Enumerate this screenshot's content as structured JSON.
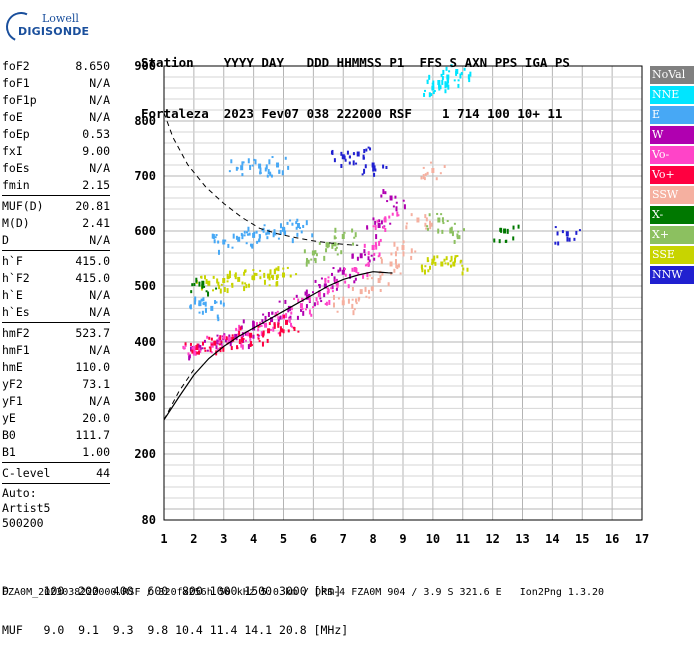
{
  "logo": {
    "brand_top": "Lowell",
    "brand_bottom": "DIGISONDE"
  },
  "header": {
    "line1": "Station    YYYY DAY   DDD HHMMSS P1  FFS S AXN PPS IGA PS",
    "line2": "Fortaleza  2023 Fev07 038 222000 RSF    1 714 100 10+ 11"
  },
  "params": [
    {
      "k": "foF2",
      "v": "8.650"
    },
    {
      "k": "foF1",
      "v": "N/A"
    },
    {
      "k": "foF1p",
      "v": "N/A"
    },
    {
      "k": "foE",
      "v": "N/A"
    },
    {
      "k": "foEp",
      "v": "0.53"
    },
    {
      "k": "fxI",
      "v": "9.00"
    },
    {
      "k": "foEs",
      "v": "N/A"
    },
    {
      "k": "fmin",
      "v": "2.15"
    },
    {
      "k": "MUF(D)",
      "v": "20.81",
      "sep": true
    },
    {
      "k": "M(D)",
      "v": "2.41"
    },
    {
      "k": "D",
      "v": "N/A"
    },
    {
      "k": "h`F",
      "v": "415.0",
      "sep": true
    },
    {
      "k": "h`F2",
      "v": "415.0"
    },
    {
      "k": "h`E",
      "v": "N/A"
    },
    {
      "k": "h`Es",
      "v": "N/A"
    },
    {
      "k": "hmF2",
      "v": "523.7",
      "sep": true
    },
    {
      "k": "hmF1",
      "v": "N/A"
    },
    {
      "k": "hmE",
      "v": "110.0"
    },
    {
      "k": "yF2",
      "v": "73.1"
    },
    {
      "k": "yF1",
      "v": "N/A"
    },
    {
      "k": "yE",
      "v": "20.0"
    },
    {
      "k": "B0",
      "v": "111.7"
    },
    {
      "k": "B1",
      "v": "1.00"
    },
    {
      "k": "C-level",
      "v": "44",
      "sep": true
    }
  ],
  "autoscale": {
    "l1": "Auto:",
    "l2": "Artist5",
    "l3": "500200"
  },
  "legend": [
    {
      "label": "NoVal",
      "color": "#808080"
    },
    {
      "label": "NNE",
      "color": "#00e5ff"
    },
    {
      "label": "E",
      "color": "#47a8f5"
    },
    {
      "label": "W",
      "color": "#b000b0"
    },
    {
      "label": "Vo-",
      "color": "#ff44c8"
    },
    {
      "label": "Vo+",
      "color": "#ff0040"
    },
    {
      "label": "SSW",
      "color": "#f5b0a0"
    },
    {
      "label": "X-",
      "color": "#007800"
    },
    {
      "label": "X+",
      "color": "#8cc060"
    },
    {
      "label": "SSE",
      "color": "#c8d400"
    },
    {
      "label": "NNW",
      "color": "#2020d0"
    }
  ],
  "bottom": {
    "d_line": "D     100  200  400  600  800 1000 1500 3000 [km]",
    "muf_line": "MUF   9.0  9.1  9.3  9.8 10.4 11.4 14.1 20.8 [MHz]"
  },
  "footer": "FZA0M_2023038222000.RSF / 320fx256h 50 kHz 5.0 km / DPS-4 FZA0M 904 / 3.9 S 321.6 E   Ion2Png 1.3.20",
  "chart_data": {
    "type": "scatter",
    "xlim": [
      1,
      17
    ],
    "ylim": [
      80,
      900
    ],
    "x_ticks": [
      1,
      2,
      3,
      4,
      5,
      6,
      7,
      8,
      9,
      10,
      11,
      12,
      13,
      14,
      15,
      16,
      17
    ],
    "y_ticks": [
      80,
      200,
      300,
      400,
      500,
      600,
      700,
      800,
      900
    ],
    "grid": true,
    "legend_position": "right",
    "series": [
      {
        "name": "W",
        "color": "#b000b0",
        "x": [
          2.2,
          2.8,
          3.4,
          4.0,
          4.6,
          5.2,
          5.8,
          6.4,
          7.0,
          7.6,
          8.2,
          8.6
        ],
        "y": [
          390,
          400,
          410,
          425,
          440,
          460,
          480,
          500,
          525,
          555,
          610,
          660
        ]
      },
      {
        "name": "Vo-",
        "color": "#ff44c8",
        "x": [
          2.0,
          2.6,
          3.2,
          3.8,
          4.4,
          5.0,
          5.6,
          6.2,
          6.8,
          7.4,
          8.0,
          8.4
        ],
        "y": [
          385,
          395,
          405,
          415,
          430,
          445,
          465,
          485,
          505,
          530,
          570,
          620
        ]
      },
      {
        "name": "Vo+",
        "color": "#ff0040",
        "x": [
          2.1,
          2.7,
          3.3,
          3.9,
          4.5,
          5.1
        ],
        "y": [
          390,
          398,
          405,
          412,
          420,
          435
        ]
      },
      {
        "name": "SSW",
        "color": "#f5b0a0",
        "x": [
          7.0,
          7.6,
          8.2,
          8.6,
          9.0,
          9.5,
          10.0
        ],
        "y": [
          470,
          490,
          510,
          540,
          570,
          620,
          710
        ]
      },
      {
        "name": "E",
        "color": "#47a8f5",
        "x": [
          3.0,
          3.5,
          4.0,
          4.5,
          5.0,
          5.5,
          2.2,
          2.6,
          3.6,
          4.2,
          4.8
        ],
        "y": [
          580,
          585,
          592,
          598,
          603,
          610,
          470,
          460,
          715,
          718,
          720
        ]
      },
      {
        "name": "NNE",
        "color": "#00e5ff",
        "x": [
          10.0,
          10.2,
          10.5,
          10.8
        ],
        "y": [
          860,
          870,
          880,
          890
        ]
      },
      {
        "name": "SSE",
        "color": "#c8d400",
        "x": [
          2.5,
          3.0,
          3.5,
          4.0,
          4.5,
          5.0,
          10.0,
          10.3,
          10.7
        ],
        "y": [
          505,
          510,
          512,
          515,
          518,
          520,
          545,
          540,
          540
        ]
      },
      {
        "name": "X+",
        "color": "#8cc060",
        "x": [
          6.0,
          6.5,
          7.0,
          10.2,
          10.6
        ],
        "y": [
          560,
          575,
          590,
          620,
          600
        ]
      },
      {
        "name": "X-",
        "color": "#007800",
        "x": [
          2.3,
          12.4
        ],
        "y": [
          505,
          600
        ]
      },
      {
        "name": "NNW",
        "color": "#2020d0",
        "x": [
          7.0,
          7.5,
          8.0,
          14.5
        ],
        "y": [
          735,
          740,
          720,
          595
        ]
      }
    ],
    "profile_curve": {
      "x": [
        1.0,
        1.5,
        2.0,
        2.5,
        3.0,
        3.5,
        4.0,
        4.5,
        5.0,
        5.5,
        6.0,
        6.5,
        7.0,
        7.5,
        8.0,
        8.5,
        8.65
      ],
      "y": [
        260,
        300,
        340,
        370,
        392,
        410,
        425,
        440,
        455,
        470,
        485,
        500,
        512,
        520,
        526,
        524,
        523.7
      ]
    },
    "dashed_curve": {
      "x": [
        1.0,
        1.3,
        1.8,
        2.4,
        3.0,
        3.6,
        4.2,
        4.8,
        5.4,
        6.0,
        6.6,
        7.2,
        7.5
      ],
      "y": [
        815,
        770,
        720,
        680,
        650,
        625,
        605,
        595,
        588,
        582,
        578,
        575,
        574
      ]
    },
    "dashed_lower": {
      "x": [
        1.0,
        1.5,
        2.0
      ],
      "y": [
        260,
        310,
        350
      ]
    }
  }
}
